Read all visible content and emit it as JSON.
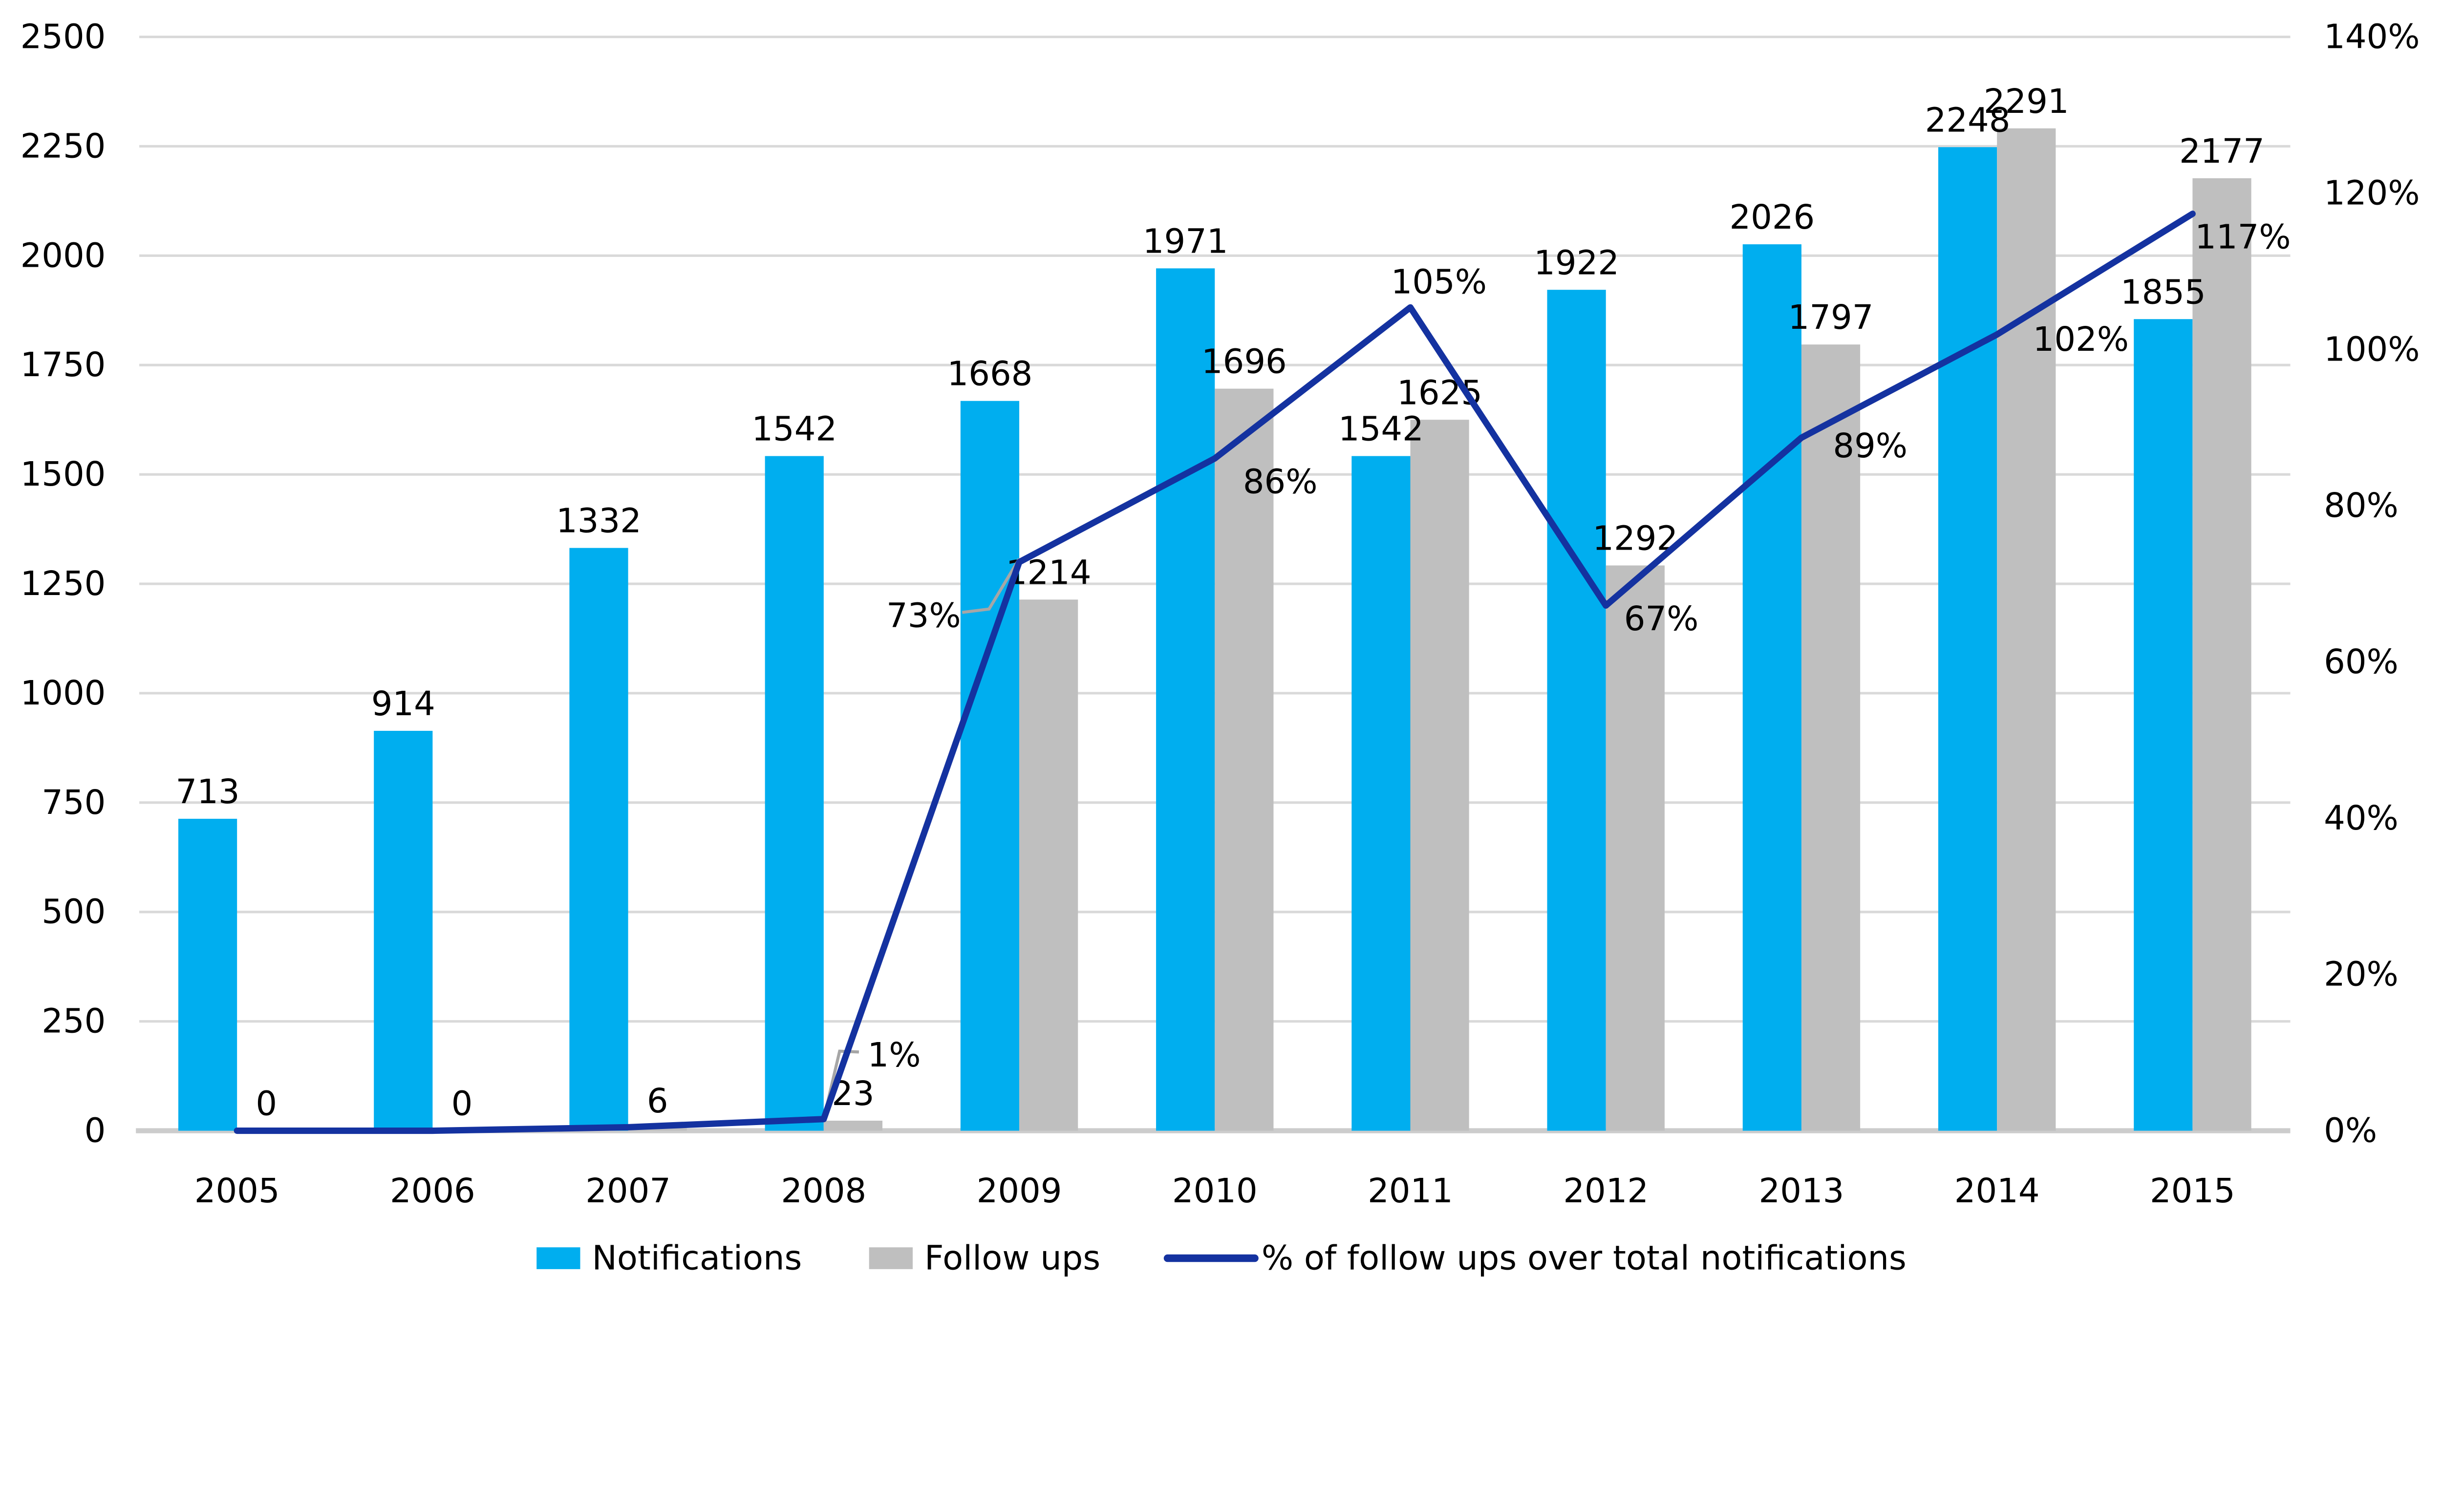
{
  "chart_data": {
    "type": "combo-bar-line",
    "title": "",
    "categories": [
      "2005",
      "2006",
      "2007",
      "2008",
      "2009",
      "2010",
      "2011",
      "2012",
      "2013",
      "2014",
      "2015"
    ],
    "series": [
      {
        "name": "Notifications",
        "type": "bar",
        "color": "#00AEEF",
        "axis": "left",
        "values": [
          713,
          914,
          1332,
          1542,
          1668,
          1971,
          1542,
          1922,
          2026,
          2248,
          1855
        ],
        "data_labels": [
          "713",
          "914",
          "1332",
          "1542",
          "1668",
          "1971",
          "1542",
          "1922",
          "2026",
          "2248",
          "1855"
        ]
      },
      {
        "name": "Follow ups",
        "type": "bar",
        "color": "#BFBFBF",
        "axis": "left",
        "values": [
          0,
          0,
          6,
          23,
          1214,
          1696,
          1625,
          1292,
          1797,
          2291,
          2177
        ],
        "data_labels": [
          "0",
          "0",
          "6",
          "23",
          "1214",
          "1696",
          "1625",
          "1292",
          "1797",
          "2291",
          "2177"
        ]
      },
      {
        "name": "% of follow ups over total notifications",
        "type": "line",
        "color": "#1432A0",
        "axis": "right",
        "values_pct": [
          0,
          0,
          0.45,
          1.49,
          72.78,
          86.05,
          105.38,
          67.22,
          88.7,
          101.91,
          117.36
        ],
        "point_labels": [
          "",
          "",
          "",
          "1%",
          "73%",
          "86%",
          "105%",
          "67%",
          "89%",
          "102%",
          "117%"
        ]
      }
    ],
    "left_axis": {
      "min": 0,
      "max": 2500,
      "step": 250,
      "tick_labels": [
        "0",
        "250",
        "500",
        "750",
        "1000",
        "1250",
        "1500",
        "1750",
        "2000",
        "2250",
        "2500"
      ]
    },
    "right_axis": {
      "min": 0,
      "max": 140,
      "step": 20,
      "tick_labels": [
        "0%",
        "20%",
        "40%",
        "60%",
        "80%",
        "100%",
        "120%",
        "140%"
      ]
    },
    "legend": {
      "position": "bottom",
      "labels": [
        "Notifications",
        "Follow ups",
        "% of follow ups over total notifications"
      ]
    },
    "style": {
      "grid_on": true,
      "grid_color": "#D9D9D9",
      "axis_line_color": "#CCCCCC",
      "leader_line_color": "#A6A6A6",
      "text_color": "#000000",
      "background": "#FFFFFF"
    },
    "layout_hints": {
      "pct_label_offsets": {
        "3": [
          42,
          -38
        ],
        "4": [
          -57,
          32
        ],
        "5": [
          39,
          14
        ],
        "6": [
          17,
          -15
        ],
        "7": [
          33,
          8
        ],
        "8": [
          41,
          5
        ],
        "9": [
          50,
          3
        ],
        "10": [
          30,
          14
        ]
      },
      "leader_lines": {
        "3": [
          [
            0,
            0
          ],
          [
            9.5,
            -40.5
          ],
          [
            21,
            -40
          ]
        ],
        "4": [
          [
            0,
            -2
          ],
          [
            -18,
            28
          ],
          [
            -34,
            30
          ]
        ]
      }
    }
  }
}
